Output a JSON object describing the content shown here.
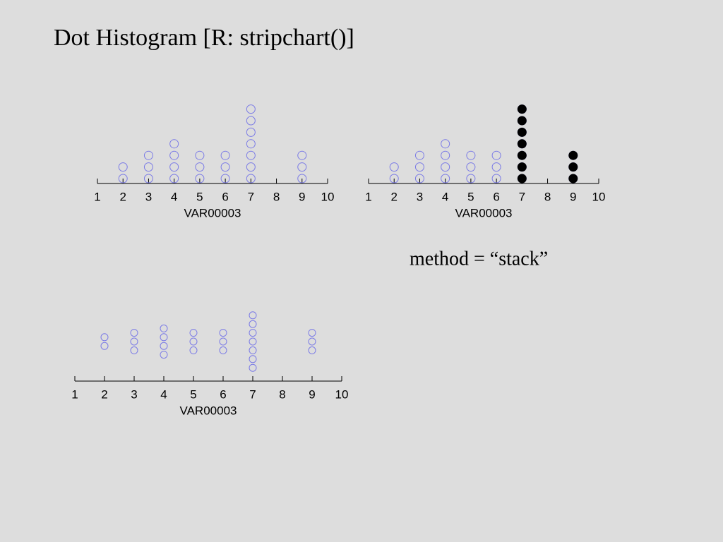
{
  "title": "Dot Histogram [R: stripchart()]",
  "annotation": "method = “stack”",
  "chart_data": [
    {
      "type": "dot",
      "method": "stack",
      "xlabel": "VAR00003",
      "xlim": [
        1,
        10
      ],
      "xticks": [
        1,
        2,
        3,
        4,
        5,
        6,
        7,
        8,
        9,
        10
      ],
      "series": [
        {
          "color": "#7b7be6",
          "fill": "none",
          "values": [
            2,
            2,
            3,
            3,
            3,
            4,
            4,
            4,
            4,
            5,
            5,
            5,
            6,
            6,
            6,
            7,
            7,
            7,
            7,
            7,
            7,
            7,
            9,
            9,
            9
          ]
        }
      ]
    },
    {
      "type": "dot",
      "method": "stack",
      "xlabel": "VAR00003",
      "xlim": [
        1,
        10
      ],
      "xticks": [
        1,
        2,
        3,
        4,
        5,
        6,
        7,
        8,
        9,
        10
      ],
      "series": [
        {
          "color": "#7b7be6",
          "fill": "none",
          "values": [
            2,
            2,
            3,
            3,
            3,
            4,
            4,
            4,
            4,
            5,
            5,
            5,
            6,
            6,
            6,
            7,
            7,
            7,
            7,
            7,
            7,
            7,
            9,
            9,
            9
          ]
        },
        {
          "color": "#000000",
          "fill": "#000000",
          "values": [
            7,
            7,
            7,
            7,
            7,
            7,
            7,
            9,
            9,
            9
          ]
        }
      ]
    },
    {
      "type": "dot",
      "method": "center",
      "xlabel": "VAR00003",
      "xlim": [
        1,
        10
      ],
      "xticks": [
        1,
        2,
        3,
        4,
        5,
        6,
        7,
        8,
        9,
        10
      ],
      "series": [
        {
          "color": "#7b7be6",
          "fill": "none",
          "values": [
            2,
            2,
            3,
            3,
            3,
            4,
            4,
            4,
            4,
            5,
            5,
            5,
            6,
            6,
            6,
            7,
            7,
            7,
            7,
            7,
            7,
            7,
            9,
            9,
            9
          ]
        }
      ]
    }
  ]
}
